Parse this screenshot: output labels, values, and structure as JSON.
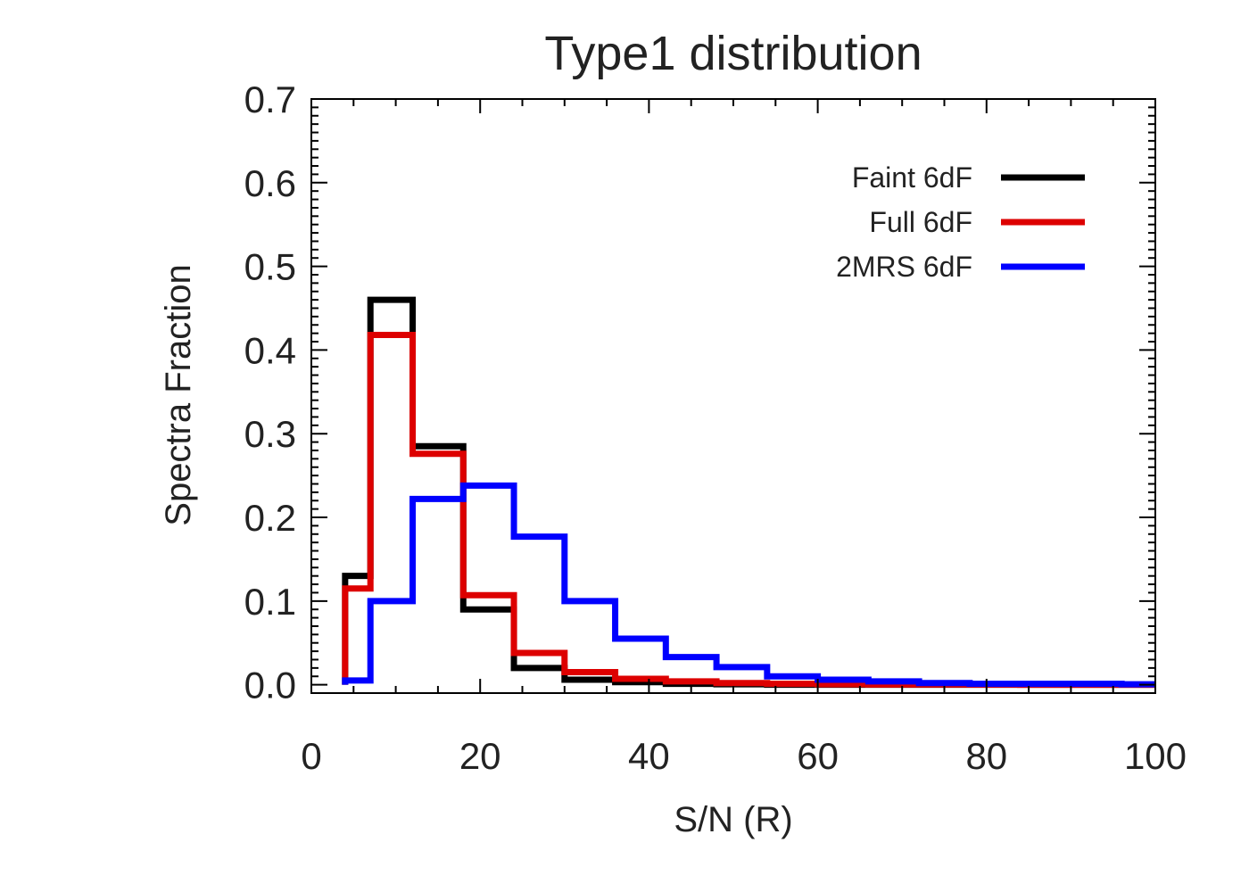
{
  "chart_data": {
    "type": "histogram-step",
    "title": "Type1 distribution",
    "xlabel": "S/N (R)",
    "ylabel": "Spectra Fraction",
    "xlim": [
      0,
      100
    ],
    "ylim": [
      -0.01,
      0.7
    ],
    "xticks": [
      0,
      20,
      40,
      60,
      80,
      100
    ],
    "xtick_labels": [
      "0",
      "20",
      "40",
      "60",
      "80",
      "100"
    ],
    "yticks": [
      0.0,
      0.1,
      0.2,
      0.3,
      0.4,
      0.5,
      0.6,
      0.7
    ],
    "ytick_labels": [
      "0.0",
      "0.1",
      "0.2",
      "0.3",
      "0.4",
      "0.5",
      "0.6",
      "0.7"
    ],
    "bin_edges": [
      4,
      7,
      12,
      18,
      24,
      30,
      36,
      42,
      48,
      54,
      60,
      66,
      72,
      78,
      84,
      90,
      96,
      100
    ],
    "series": [
      {
        "name": "Faint 6dF",
        "color": "#000000",
        "values": [
          0.13,
          0.46,
          0.285,
          0.09,
          0.02,
          0.006,
          0.003,
          0.001,
          0.0005,
          0,
          0,
          0,
          0,
          0,
          0,
          0,
          0
        ]
      },
      {
        "name": "Full 6dF",
        "color": "#dd0000",
        "values": [
          0.115,
          0.418,
          0.276,
          0.107,
          0.038,
          0.015,
          0.007,
          0.004,
          0.002,
          0.001,
          0.0005,
          0.0003,
          0.0002,
          0.0001,
          0,
          0,
          0
        ]
      },
      {
        "name": "2MRS 6dF",
        "color": "#0000ff",
        "values": [
          0.005,
          0.1,
          0.222,
          0.238,
          0.177,
          0.1,
          0.055,
          0.033,
          0.021,
          0.01,
          0.006,
          0.004,
          0.002,
          0.001,
          0.001,
          0.001,
          0.0005
        ]
      }
    ],
    "legend": {
      "placement": "top-right",
      "entries": [
        "Faint 6dF",
        "Full 6dF",
        "2MRS 6dF"
      ]
    }
  }
}
